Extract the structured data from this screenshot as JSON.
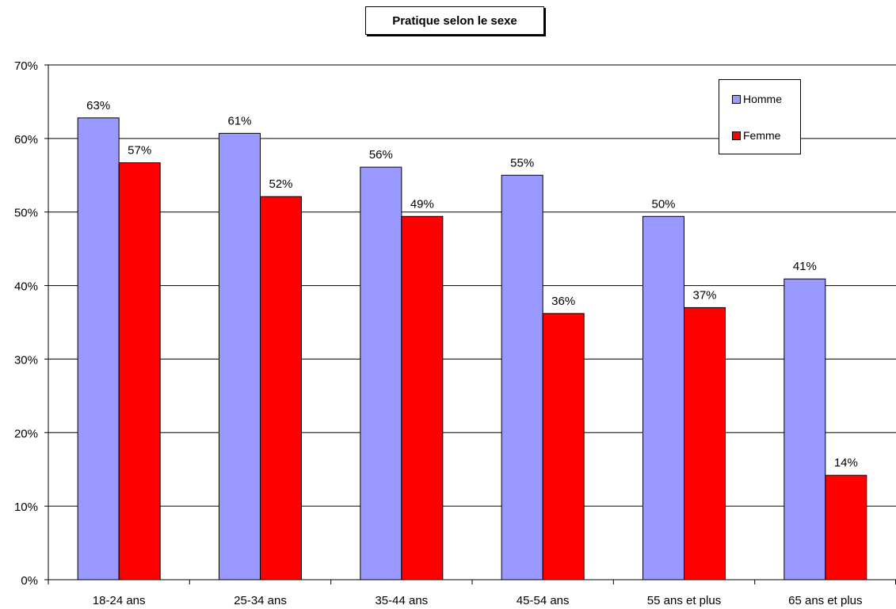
{
  "chart_data": {
    "type": "bar",
    "title": "Pratique selon le sexe",
    "categories": [
      "18-24 ans",
      "25-34 ans",
      "35-44 ans",
      "45-54 ans",
      "55 ans et plus",
      "65 ans et plus"
    ],
    "series": [
      {
        "name": "Homme",
        "color": "#9999FF",
        "values": [
          63,
          61,
          56,
          55,
          50,
          41
        ],
        "labels": [
          "63%",
          "61%",
          "56%",
          "55%",
          "50%",
          "41%"
        ]
      },
      {
        "name": "Femme",
        "color": "#FF0000",
        "values": [
          57,
          52,
          49,
          36,
          37,
          14
        ],
        "labels": [
          "57%",
          "52%",
          "49%",
          "36%",
          "37%",
          "14%"
        ]
      }
    ],
    "bar_values_exact": {
      "Homme": [
        62.8,
        60.7,
        56.1,
        55.0,
        49.4,
        40.9
      ],
      "Femme": [
        56.7,
        52.1,
        49.4,
        36.2,
        37.0,
        14.2
      ]
    },
    "ylim": [
      0,
      70
    ],
    "yticks": [
      "0%",
      "10%",
      "20%",
      "30%",
      "40%",
      "50%",
      "60%",
      "70%"
    ],
    "grid": true,
    "legend_position": "top-right"
  }
}
